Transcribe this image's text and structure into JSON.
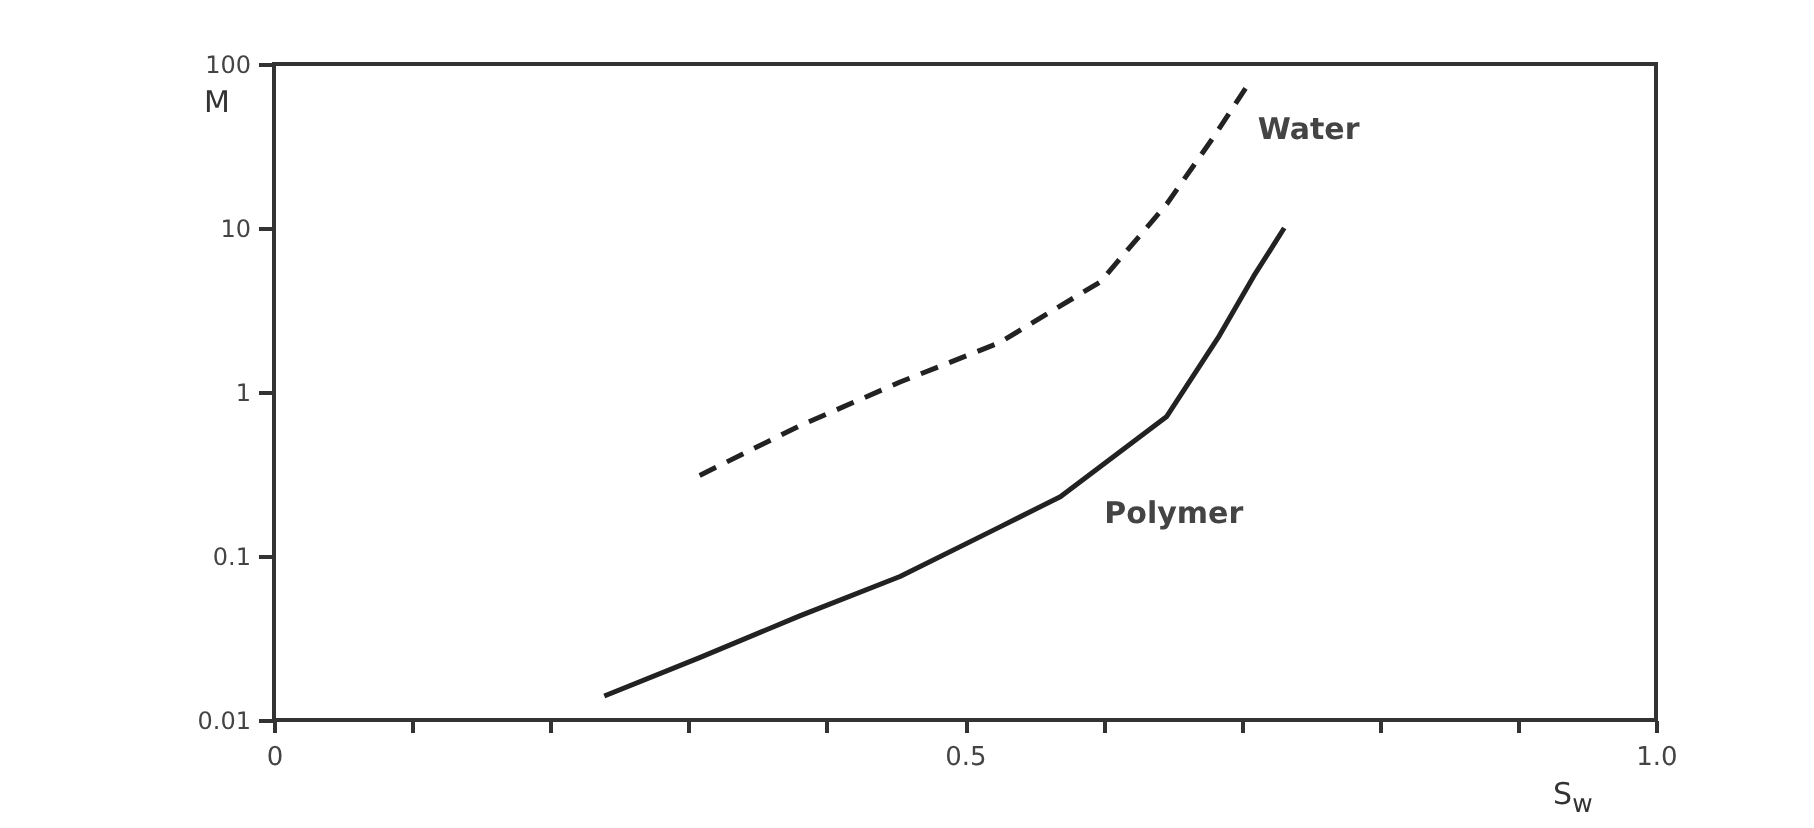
{
  "chart_data": {
    "type": "line",
    "xlabel": "S$_{w}$",
    "ylabel": "M",
    "log": "y",
    "xlim": [
      0,
      1
    ],
    "xticks": [
      0,
      {
        "value": 0.1,
        "label": null
      },
      {
        "value": 0.2,
        "label": null
      },
      {
        "value": 0.3,
        "label": null
      },
      {
        "value": 0.4,
        "label": null
      },
      0.5,
      {
        "value": 0.6,
        "label": null
      },
      {
        "value": 0.7,
        "label": null
      },
      {
        "value": 0.8,
        "label": null
      },
      {
        "value": 0.9,
        "label": null
      },
      {
        "value": 1,
        "label": "1.0"
      }
    ],
    "ylim": [
      0.01,
      100
    ],
    "yticks": [
      0.01,
      0.1,
      1,
      10,
      100
    ],
    "grid": false,
    "series": [
      {
        "name": "Water",
        "color": "#222222",
        "line_style": "dashed",
        "x": [
          0.308,
          0.38,
          0.453,
          0.525,
          0.598,
          0.646,
          0.68,
          0.703
        ],
        "values": [
          0.31,
          0.62,
          1.15,
          2.0,
          4.7,
          14,
          36,
          71
        ]
      },
      {
        "name": "Polymer",
        "color": "#222222",
        "line_style": "solid",
        "x": [
          0.239,
          0.308,
          0.38,
          0.453,
          0.525,
          0.569,
          0.646,
          0.684,
          0.709,
          0.731
        ],
        "values": [
          0.014,
          0.024,
          0.043,
          0.075,
          0.15,
          0.23,
          0.71,
          2.2,
          5.1,
          10
        ]
      }
    ]
  }
}
